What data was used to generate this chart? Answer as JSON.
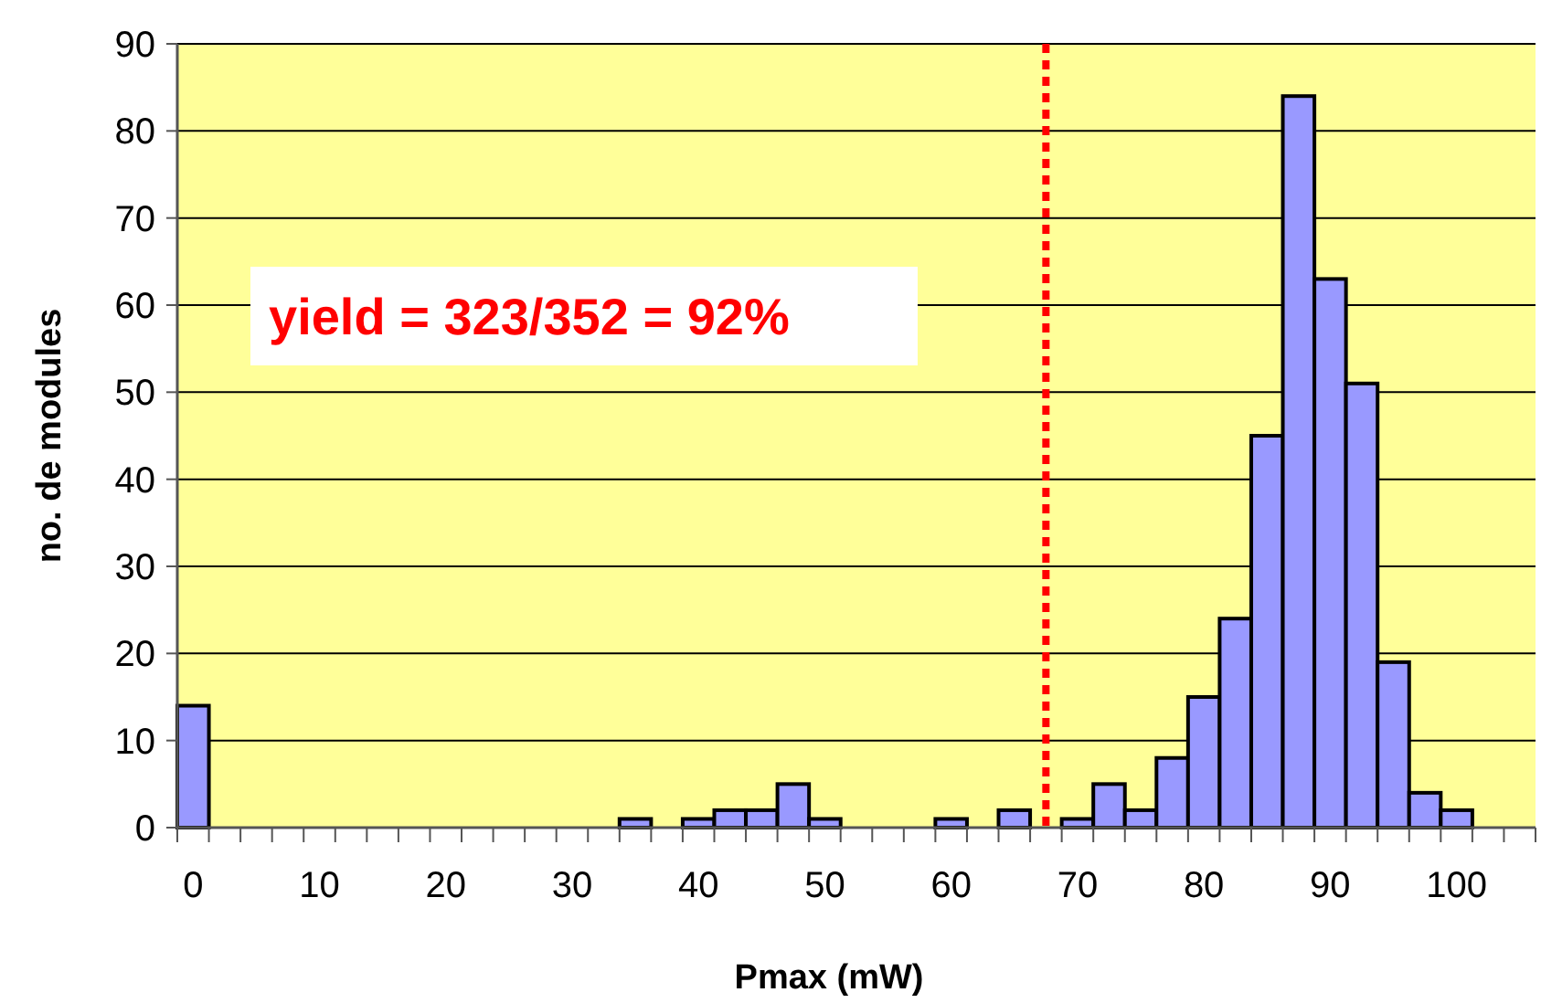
{
  "chart_data": {
    "type": "histogram",
    "xlabel": "Pmax (mW)",
    "ylabel": "no. de modules",
    "bins": [
      -1.25,
      1.25,
      3.75,
      6.25,
      8.75,
      11.25,
      13.75,
      16.25,
      18.75,
      21.25,
      23.75,
      26.25,
      28.75,
      31.25,
      33.75,
      36.25,
      38.75,
      41.25,
      43.75,
      46.25,
      48.75,
      51.25,
      53.75,
      56.25,
      58.75,
      61.25,
      63.75,
      66.25,
      68.75,
      71.25,
      73.75,
      76.25,
      78.75,
      81.25,
      83.75,
      86.25,
      88.75,
      91.25,
      93.75,
      96.25,
      98.75,
      101.25,
      103.75,
      106.25
    ],
    "values": [
      14,
      0,
      0,
      0,
      0,
      0,
      0,
      0,
      0,
      0,
      0,
      0,
      0,
      0,
      1,
      0,
      1,
      2,
      2,
      5,
      1,
      0,
      0,
      0,
      1,
      0,
      2,
      0,
      1,
      5,
      2,
      8,
      15,
      24,
      45,
      84,
      63,
      51,
      19,
      4,
      2,
      0,
      0
    ],
    "color": "#9999ff",
    "xlim": [
      -1.25,
      106.25
    ],
    "xticks": [
      0,
      10,
      20,
      30,
      40,
      50,
      60,
      70,
      80,
      90,
      100
    ],
    "ylim": [
      0,
      90
    ],
    "yticks": [
      0,
      10,
      20,
      30,
      40,
      50,
      60,
      70,
      80,
      90
    ],
    "grid": "y",
    "ref_lines": [
      {
        "axis": "x",
        "value": 67.5,
        "color": "#ff0000",
        "line_style": "dotted"
      }
    ],
    "annotations": [
      "yield = 323/352 = 92%"
    ]
  }
}
